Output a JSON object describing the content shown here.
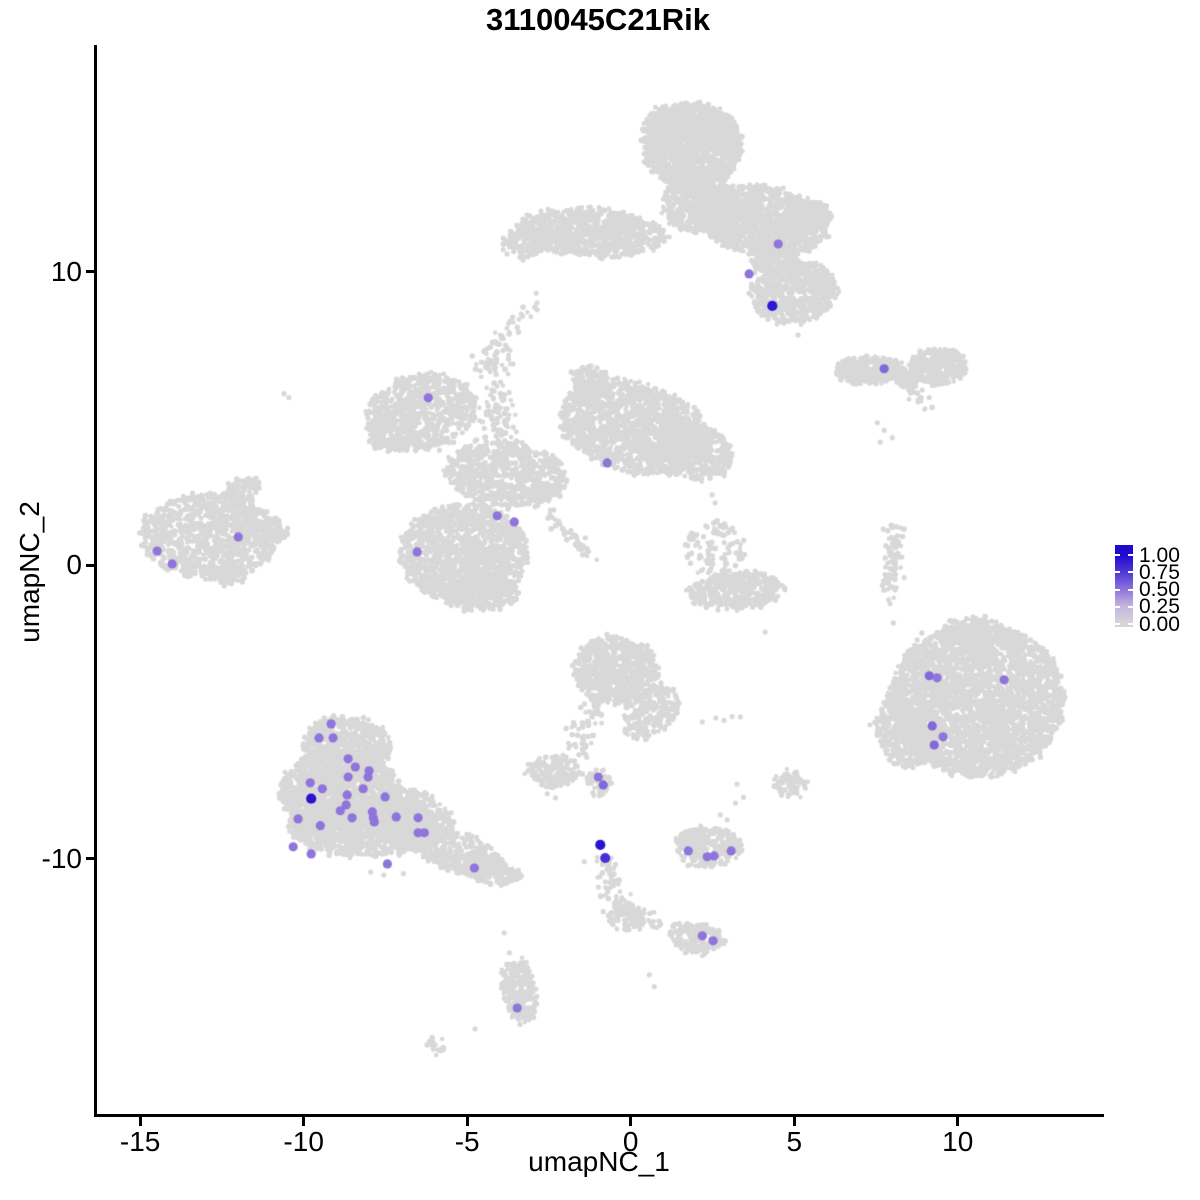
{
  "chart_data": {
    "type": "scatter",
    "title": "3110045C21Rik",
    "xlabel": "umapNC_1",
    "ylabel": "umapNC_2",
    "xlim": [
      -16.35,
      14.38
    ],
    "ylim": [
      -18.76,
      17.73
    ],
    "x_ticks": [
      "-15",
      "-10",
      "-5",
      "0",
      "5",
      "10"
    ],
    "x_tick_values": [
      -15,
      -10,
      -5,
      0,
      5,
      10
    ],
    "y_ticks": [
      "10",
      "0",
      "-10"
    ],
    "y_tick_values": [
      10,
      0,
      -10
    ],
    "grid": false,
    "background_color": "#FFFFFF",
    "base_point_color": "#D8D8D8",
    "legend": {
      "position": "right",
      "labels": [
        "1.00",
        "0.75",
        "0.50",
        "0.25",
        "0.00"
      ],
      "stops": [
        {
          "value": 1.0,
          "color": "#2008D0"
        },
        {
          "value": 0.75,
          "color": "#5039D6"
        },
        {
          "value": 0.5,
          "color": "#8F74DB"
        },
        {
          "value": 0.25,
          "color": "#C4B8E0"
        },
        {
          "value": 0.0,
          "color": "#D6D6D6"
        }
      ]
    },
    "blobs_format": "[center_x, center_y, radius_x, radius_y, rotation_deg, n_points]",
    "strands_format": "[x1, y1, x2, y2, width, n_points]",
    "clusters": [
      {
        "name": "top-center",
        "blobs": [
          [
            1.9,
            14.3,
            1.5,
            1.45,
            0,
            1300
          ],
          [
            1.25,
            15.1,
            0.85,
            0.6,
            20,
            260
          ],
          [
            2.6,
            14.85,
            0.7,
            0.55,
            -15,
            220
          ],
          [
            2.1,
            12.3,
            1.15,
            0.95,
            0,
            480
          ],
          [
            4.0,
            11.75,
            2.05,
            1.15,
            -10,
            1250
          ],
          [
            5.55,
            12.0,
            0.6,
            0.45,
            -15,
            140
          ],
          [
            -1.2,
            11.35,
            2.3,
            0.8,
            -4,
            850
          ],
          [
            -3.3,
            10.95,
            0.6,
            0.5,
            0,
            110
          ],
          [
            5.0,
            9.3,
            1.35,
            1.05,
            12,
            650
          ],
          [
            4.35,
            10.45,
            0.7,
            0.6,
            0,
            180
          ]
        ],
        "strands": [],
        "singles": [
          [
            -2.86,
            8.71
          ],
          [
            5.2,
            8.62
          ],
          [
            5.12,
            7.85
          ]
        ]
      },
      {
        "name": "upper-right-small",
        "blobs": [
          [
            7.3,
            6.65,
            1.05,
            0.45,
            0,
            360
          ],
          [
            9.4,
            6.8,
            0.85,
            0.62,
            0,
            320
          ],
          [
            8.5,
            6.35,
            0.38,
            0.3,
            0,
            70
          ]
        ],
        "strands": [
          [
            8.45,
            6.05,
            9.15,
            5.5,
            0.12,
            22
          ]
        ],
        "singles": [
          [
            7.54,
            4.86
          ],
          [
            7.75,
            4.6
          ],
          [
            8.0,
            4.35
          ],
          [
            7.63,
            4.2
          ]
        ]
      },
      {
        "name": "mid-left-star",
        "blobs": [
          [
            -6.4,
            5.2,
            1.7,
            1.3,
            15,
            720
          ],
          [
            -7.3,
            4.6,
            0.8,
            0.7,
            0,
            180
          ],
          [
            0.1,
            4.7,
            2.35,
            1.5,
            -18,
            1500
          ],
          [
            -1.25,
            6.3,
            0.55,
            0.5,
            0,
            130
          ],
          [
            1.95,
            3.85,
            1.15,
            0.95,
            -20,
            420
          ],
          [
            -3.8,
            3.1,
            1.85,
            1.1,
            -8,
            780
          ],
          [
            -5.1,
            0.4,
            1.95,
            1.7,
            0,
            1450
          ],
          [
            -4.55,
            -0.95,
            1.15,
            0.6,
            0,
            280
          ]
        ],
        "strands": [
          [
            -4.15,
            7.55,
            -4.0,
            4.1,
            0.28,
            110
          ],
          [
            -2.95,
            9.0,
            -4.8,
            6.5,
            0.13,
            40
          ],
          [
            -2.55,
            1.85,
            -1.2,
            0.35,
            0.13,
            40
          ]
        ],
        "singles": [
          [
            -4.2,
            5.71
          ],
          [
            -3.99,
            5.37
          ],
          [
            -3.75,
            5.0
          ],
          [
            -3.5,
            4.55
          ],
          [
            -10.6,
            5.85
          ],
          [
            -10.45,
            5.72
          ]
        ]
      },
      {
        "name": "far-left",
        "blobs": [
          [
            -12.9,
            1.0,
            2.1,
            1.45,
            0,
            1050
          ],
          [
            -11.9,
            2.5,
            0.6,
            0.45,
            35,
            90
          ],
          [
            -11.0,
            1.2,
            0.6,
            0.38,
            0,
            80
          ],
          [
            -12.3,
            -0.35,
            0.55,
            0.38,
            0,
            70
          ]
        ],
        "strands": [],
        "singles": []
      },
      {
        "name": "center-small-pair",
        "blobs": [
          [
            3.2,
            -0.85,
            1.5,
            0.62,
            5,
            400
          ],
          [
            2.6,
            0.55,
            0.95,
            0.95,
            0,
            110
          ]
        ],
        "strands": [],
        "singles": [
          [
            2.49,
            2.4
          ],
          [
            2.58,
            2.13
          ],
          [
            4.11,
            -2.27
          ]
        ]
      },
      {
        "name": "right-sliver",
        "blobs": [],
        "strands": [
          [
            8.1,
            1.2,
            7.95,
            -1.0,
            0.18,
            85
          ]
        ],
        "singles": [
          [
            7.93,
            -1.3
          ],
          [
            8.03,
            -1.96
          ],
          [
            8.76,
            -2.54
          ]
        ]
      },
      {
        "name": "right-large",
        "blobs": [
          [
            10.6,
            -4.6,
            2.65,
            2.6,
            0,
            3100
          ],
          [
            8.45,
            -5.6,
            0.95,
            1.35,
            10,
            420
          ],
          [
            10.4,
            -2.25,
            0.95,
            0.5,
            0,
            160
          ]
        ],
        "strands": [],
        "singles": [
          [
            8.64,
            -2.98
          ],
          [
            9.31,
            -2.95
          ],
          [
            8.24,
            -3.9
          ],
          [
            7.93,
            -4.17
          ],
          [
            8.15,
            -4.34
          ],
          [
            8.9,
            -2.3
          ]
        ]
      },
      {
        "name": "bottom-left-large",
        "blobs": [
          [
            -8.7,
            -6.2,
            1.35,
            1.05,
            0,
            680
          ],
          [
            -8.9,
            -7.7,
            1.85,
            1.35,
            0,
            1350
          ],
          [
            -8.2,
            -8.9,
            2.3,
            1.0,
            0,
            1050
          ],
          [
            -6.6,
            -8.6,
            1.25,
            0.9,
            -20,
            430
          ],
          [
            -5.3,
            -9.8,
            1.4,
            0.65,
            -18,
            330
          ],
          [
            -4.2,
            -10.4,
            0.85,
            0.45,
            -15,
            140
          ]
        ],
        "strands": [],
        "singles": [
          [
            -7.95,
            -10.45
          ],
          [
            -7.55,
            -10.55
          ],
          [
            -6.95,
            -10.5
          ]
        ]
      },
      {
        "name": "center-comma",
        "blobs": [
          [
            -0.45,
            -3.55,
            1.3,
            1.15,
            0,
            680
          ],
          [
            0.6,
            -5.0,
            0.75,
            1.05,
            -35,
            240
          ],
          [
            -2.35,
            -7.0,
            0.8,
            0.55,
            0,
            150
          ],
          [
            -1.0,
            -7.4,
            0.38,
            0.42,
            0,
            55
          ],
          [
            4.88,
            -7.48,
            0.5,
            0.42,
            0,
            85
          ]
        ],
        "strands": [
          [
            -0.9,
            -4.6,
            -1.9,
            -6.5,
            0.25,
            60
          ]
        ],
        "singles": [
          [
            -2.55,
            -7.78
          ],
          [
            -2.3,
            -7.92
          ],
          [
            2.19,
            -5.33
          ],
          [
            2.6,
            -5.2
          ],
          [
            2.85,
            -5.28
          ],
          [
            3.1,
            -5.15
          ],
          [
            3.35,
            -5.16
          ],
          [
            3.25,
            -7.45
          ],
          [
            3.45,
            -7.9
          ],
          [
            3.2,
            -8.1
          ]
        ]
      },
      {
        "name": "lower-strand-y",
        "blobs": [
          [
            -0.12,
            -12.0,
            0.55,
            0.5,
            0,
            100
          ]
        ],
        "strands": [
          [
            -0.85,
            -10.0,
            -0.35,
            -11.6,
            0.2,
            55
          ],
          [
            0.15,
            -11.85,
            1.0,
            -12.2,
            0.12,
            20
          ]
        ],
        "singles": [
          [
            -0.84,
            -11.8
          ]
        ]
      },
      {
        "name": "bottom-small-right",
        "blobs": [
          [
            2.4,
            -9.6,
            1.0,
            0.68,
            0,
            250
          ],
          [
            1.8,
            -9.35,
            0.42,
            0.35,
            0,
            55
          ]
        ],
        "strands": [],
        "singles": [
          [
            2.74,
            -8.5
          ],
          [
            2.95,
            -8.67
          ]
        ]
      },
      {
        "name": "bottom-small-far",
        "blobs": [
          [
            2.0,
            -12.7,
            0.85,
            0.5,
            -10,
            160
          ]
        ],
        "strands": [],
        "singles": []
      },
      {
        "name": "bottom-tail",
        "blobs": [
          [
            -3.4,
            -14.5,
            0.52,
            1.1,
            8,
            250
          ],
          [
            -5.95,
            -16.35,
            0.32,
            0.18,
            -30,
            22
          ]
        ],
        "strands": [],
        "singles": [
          [
            -3.87,
            -12.52
          ],
          [
            -3.71,
            -13.2
          ],
          [
            -4.76,
            -15.79
          ],
          [
            0.57,
            -13.95
          ],
          [
            0.72,
            -14.35
          ]
        ]
      }
    ],
    "expressing_cells_format": "[x, y, expression_value]",
    "expressing_cells": [
      [
        4.51,
        10.95,
        0.5
      ],
      [
        3.62,
        9.93,
        0.5
      ],
      [
        4.33,
        8.84,
        0.92
      ],
      [
        7.75,
        6.7,
        0.55
      ],
      [
        -6.19,
        5.71,
        0.5
      ],
      [
        -0.72,
        3.49,
        0.5
      ],
      [
        -4.08,
        1.69,
        0.5
      ],
      [
        -3.56,
        1.48,
        0.5
      ],
      [
        -6.53,
        0.46,
        0.5
      ],
      [
        -14.48,
        0.49,
        0.5
      ],
      [
        -14.02,
        0.05,
        0.5
      ],
      [
        -12.0,
        0.97,
        0.5
      ],
      [
        9.13,
        -3.76,
        0.55
      ],
      [
        9.37,
        -3.83,
        0.5
      ],
      [
        11.42,
        -3.9,
        0.5
      ],
      [
        9.22,
        -5.47,
        0.55
      ],
      [
        9.55,
        -5.84,
        0.5
      ],
      [
        9.28,
        -6.12,
        0.55
      ],
      [
        -9.16,
        -5.4,
        0.5
      ],
      [
        -9.53,
        -5.88,
        0.5
      ],
      [
        -9.1,
        -5.88,
        0.5
      ],
      [
        -8.64,
        -6.59,
        0.5
      ],
      [
        -8.42,
        -6.87,
        0.5
      ],
      [
        -8.0,
        -7.0,
        0.5
      ],
      [
        -8.64,
        -7.21,
        0.5
      ],
      [
        -8.03,
        -7.21,
        0.5
      ],
      [
        -9.8,
        -7.41,
        0.5
      ],
      [
        -9.43,
        -7.61,
        0.5
      ],
      [
        -8.18,
        -7.61,
        0.5
      ],
      [
        -8.67,
        -7.82,
        0.5
      ],
      [
        -7.51,
        -7.89,
        0.5
      ],
      [
        -9.77,
        -7.95,
        0.95
      ],
      [
        -8.7,
        -8.16,
        0.5
      ],
      [
        -8.88,
        -8.36,
        0.5
      ],
      [
        -7.9,
        -8.4,
        0.5
      ],
      [
        -8.52,
        -8.6,
        0.5
      ],
      [
        -7.87,
        -8.6,
        0.5
      ],
      [
        -10.17,
        -8.64,
        0.5
      ],
      [
        -7.84,
        -8.74,
        0.5
      ],
      [
        -7.17,
        -8.57,
        0.5
      ],
      [
        -6.5,
        -8.6,
        0.5
      ],
      [
        -9.49,
        -8.87,
        0.5
      ],
      [
        -6.5,
        -9.11,
        0.5
      ],
      [
        -6.31,
        -9.11,
        0.5
      ],
      [
        -10.32,
        -9.59,
        0.5
      ],
      [
        -9.77,
        -9.83,
        0.5
      ],
      [
        -7.44,
        -10.17,
        0.5
      ],
      [
        -4.78,
        -10.31,
        0.5
      ],
      [
        -0.99,
        -7.21,
        0.5
      ],
      [
        -0.84,
        -7.48,
        0.55
      ],
      [
        -0.93,
        -9.52,
        0.95
      ],
      [
        -0.78,
        -9.97,
        0.8
      ],
      [
        1.76,
        -9.73,
        0.5
      ],
      [
        2.34,
        -9.93,
        0.5
      ],
      [
        2.55,
        -9.9,
        0.5
      ],
      [
        3.07,
        -9.73,
        0.5
      ],
      [
        2.19,
        -12.62,
        0.5
      ],
      [
        2.52,
        -12.79,
        0.5
      ],
      [
        -3.47,
        -15.08,
        0.5
      ]
    ]
  }
}
